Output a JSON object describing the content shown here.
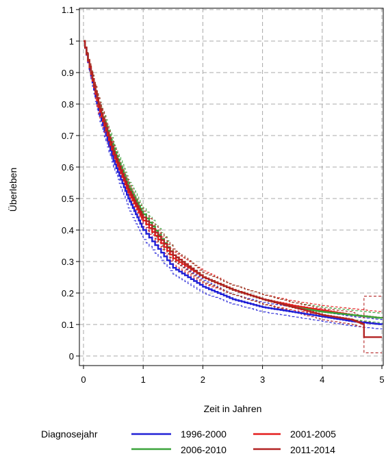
{
  "chart_data": {
    "type": "line",
    "xlabel": "Zeit in Jahren",
    "ylabel": "Überleben",
    "xlim": [
      0,
      5
    ],
    "ylim": [
      0,
      1.1
    ],
    "x_ticks": [
      "0",
      "1",
      "2",
      "3",
      "4",
      "5"
    ],
    "y_ticks": [
      "0",
      "0.1",
      "0.2",
      "0.3",
      "0.4",
      "0.5",
      "0.6",
      "0.7",
      "0.8",
      "0.9",
      "1",
      "1.1"
    ],
    "grid": true,
    "legend": {
      "title": "Diagnosejahr",
      "placement": "bottom"
    },
    "series": [
      {
        "name": "1996-2000",
        "color": "#1f1fd6",
        "x": [
          0,
          0.25,
          0.5,
          0.75,
          1,
          1.5,
          2,
          2.5,
          3,
          3.5,
          4,
          4.5,
          5
        ],
        "values": [
          1.0,
          0.78,
          0.62,
          0.5,
          0.4,
          0.28,
          0.22,
          0.18,
          0.155,
          0.14,
          0.125,
          0.11,
          0.1
        ],
        "ci_lower": [
          1.0,
          0.76,
          0.6,
          0.47,
          0.37,
          0.26,
          0.2,
          0.165,
          0.14,
          0.125,
          0.11,
          0.095,
          0.085
        ],
        "ci_upper": [
          1.0,
          0.8,
          0.64,
          0.52,
          0.42,
          0.3,
          0.24,
          0.195,
          0.17,
          0.155,
          0.14,
          0.125,
          0.115
        ]
      },
      {
        "name": "2001-2005",
        "color": "#e41a1a",
        "x": [
          0,
          0.25,
          0.5,
          0.75,
          1,
          1.5,
          2,
          2.5,
          3,
          3.5,
          4,
          4.5,
          5
        ],
        "values": [
          1.0,
          0.79,
          0.64,
          0.52,
          0.43,
          0.31,
          0.25,
          0.21,
          0.18,
          0.16,
          0.145,
          0.13,
          0.12
        ],
        "ci_lower": [
          1.0,
          0.77,
          0.62,
          0.5,
          0.41,
          0.29,
          0.23,
          0.195,
          0.165,
          0.145,
          0.13,
          0.115,
          0.1
        ],
        "ci_upper": [
          1.0,
          0.81,
          0.66,
          0.54,
          0.45,
          0.33,
          0.27,
          0.225,
          0.195,
          0.175,
          0.16,
          0.15,
          0.14
        ]
      },
      {
        "name": "2006-2010",
        "color": "#3aa33a",
        "x": [
          0,
          0.25,
          0.5,
          0.75,
          1,
          1.5,
          2,
          2.5,
          3,
          3.5,
          4,
          4.5,
          5
        ],
        "values": [
          1.0,
          0.8,
          0.66,
          0.54,
          0.45,
          0.32,
          0.25,
          0.21,
          0.18,
          0.155,
          0.14,
          0.13,
          0.12
        ],
        "ci_lower": [
          1.0,
          0.78,
          0.64,
          0.52,
          0.43,
          0.3,
          0.235,
          0.195,
          0.165,
          0.14,
          0.125,
          0.115,
          0.105
        ],
        "ci_upper": [
          1.0,
          0.82,
          0.68,
          0.56,
          0.47,
          0.34,
          0.265,
          0.225,
          0.195,
          0.17,
          0.155,
          0.145,
          0.135
        ]
      },
      {
        "name": "2011-2014",
        "color": "#b22222",
        "x": [
          0,
          0.25,
          0.5,
          0.75,
          1,
          1.5,
          2,
          2.5,
          3,
          3.5,
          4,
          4.5,
          4.7,
          4.7,
          5
        ],
        "values": [
          1.0,
          0.8,
          0.65,
          0.53,
          0.44,
          0.32,
          0.25,
          0.21,
          0.18,
          0.155,
          0.13,
          0.115,
          0.1,
          0.06,
          0.06
        ],
        "ci_lower": [
          1.0,
          0.78,
          0.63,
          0.51,
          0.42,
          0.3,
          0.235,
          0.195,
          0.165,
          0.14,
          0.115,
          0.1,
          0.09,
          0.01,
          0.01
        ],
        "ci_upper": [
          1.0,
          0.82,
          0.67,
          0.55,
          0.46,
          0.34,
          0.265,
          0.225,
          0.195,
          0.17,
          0.15,
          0.14,
          0.12,
          0.19,
          0.19
        ]
      }
    ]
  }
}
